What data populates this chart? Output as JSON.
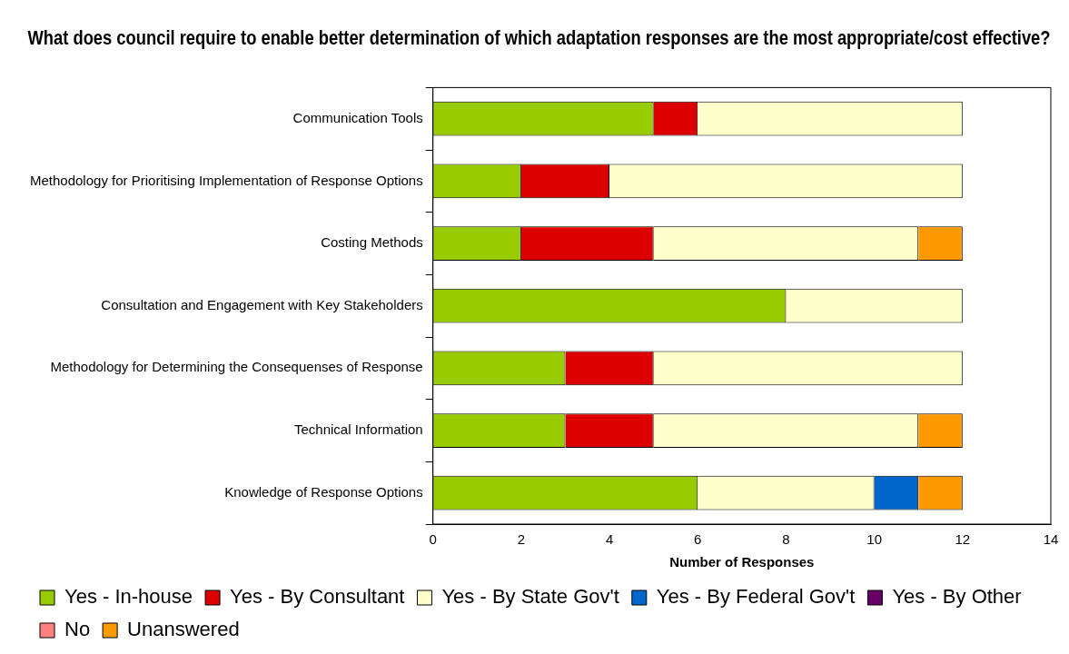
{
  "chart_data": {
    "type": "bar",
    "orientation": "horizontal",
    "stacked": true,
    "title": "What does council require to enable better determination of which adaptation responses are the most appropriate/cost effective?",
    "xlabel": "Number of Responses",
    "categories": [
      "Communication Tools",
      "Methodology for Prioritising Implementation of Response Options",
      "Costing Methods",
      "Consultation and Engagement with Key Stakeholders",
      "Methodology for Determining the Consequenses of Response",
      "Technical Information",
      "Knowledge of Response Options"
    ],
    "series": [
      {
        "name": "Yes - In-house",
        "color": "#99cc00",
        "values": [
          5,
          2,
          2,
          8,
          3,
          3,
          6
        ]
      },
      {
        "name": "Yes - By Consultant",
        "color": "#dd0000",
        "values": [
          1,
          2,
          3,
          0,
          2,
          2,
          0
        ]
      },
      {
        "name": "Yes - By State Gov't",
        "color": "#ffffcc",
        "values": [
          6,
          8,
          6,
          4,
          7,
          6,
          4
        ]
      },
      {
        "name": "Yes - By Federal Gov't",
        "color": "#0066cc",
        "values": [
          0,
          0,
          0,
          0,
          0,
          0,
          1
        ]
      },
      {
        "name": "Yes - By Other",
        "color": "#660066",
        "values": [
          0,
          0,
          0,
          0,
          0,
          0,
          0
        ]
      },
      {
        "name": "No",
        "color": "#ff8080",
        "values": [
          0,
          0,
          0,
          0,
          0,
          0,
          0
        ]
      },
      {
        "name": "Unanswered",
        "color": "#ff9900",
        "values": [
          0,
          0,
          1,
          0,
          0,
          1,
          1
        ]
      }
    ],
    "xlim": [
      0,
      14
    ],
    "xticks": [
      0,
      2,
      4,
      6,
      8,
      10,
      12,
      14
    ],
    "grid": false,
    "legend": "bottom"
  }
}
